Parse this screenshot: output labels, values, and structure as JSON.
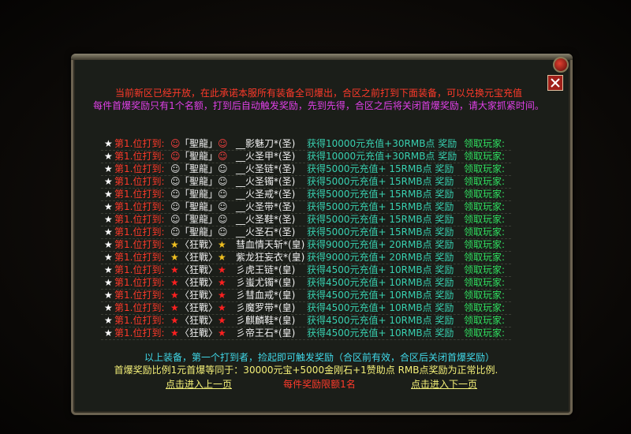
{
  "header": {
    "line1": "当前新区已经开放，在此承诺本服所有装备全司爆出，合区之前打到下面装备，可以兑换元宝充值",
    "line2": "每件首爆奖励只有1个名额，打到后自动触发奖励，先到先得，合区之后将关闭首爆奖励，请大家抓紧时间。"
  },
  "rows": [
    {
      "marker": "★",
      "rank": "第1.位打到:",
      "icon": "☺",
      "icon_color": "#ff4040",
      "label": "「聖龍」",
      "item": "__影魅刀*(圣)",
      "reward": "获得10000元充值+30RMB点 奖励",
      "claimant": "领取玩家:"
    },
    {
      "marker": "★",
      "rank": "第1.位打到:",
      "icon": "☺",
      "icon_color": "#ff4040",
      "label": "「聖龍」",
      "item": "__火圣甲*(圣)",
      "reward": "获得10000元充值+30RMB点 奖励",
      "claimant": "领取玩家:"
    },
    {
      "marker": "★",
      "rank": "第1.位打到:",
      "icon": "☺",
      "icon_color": "#e0e0e0",
      "label": "「聖龍」",
      "item": "__火圣链*(圣)",
      "reward": "获得5000元充值+ 15RMB点 奖励",
      "claimant": "领取玩家:"
    },
    {
      "marker": "★",
      "rank": "第1.位打到:",
      "icon": "☺",
      "icon_color": "#e0e0e0",
      "label": "「聖龍」",
      "item": "__火圣镯*(圣)",
      "reward": "获得5000元充值+ 15RMB点 奖励",
      "claimant": "领取玩家:"
    },
    {
      "marker": "★",
      "rank": "第1.位打到:",
      "icon": "☺",
      "icon_color": "#e0e0e0",
      "label": "「聖龍」",
      "item": "__火圣戒*(圣)",
      "reward": "获得5000元充值+ 15RMB点 奖励",
      "claimant": "领取玩家:"
    },
    {
      "marker": "★",
      "rank": "第1.位打到:",
      "icon": "☺",
      "icon_color": "#e0e0e0",
      "label": "「聖龍」",
      "item": "__火圣带*(圣)",
      "reward": "获得5000元充值+ 15RMB点 奖励",
      "claimant": "领取玩家:"
    },
    {
      "marker": "★",
      "rank": "第1.位打到:",
      "icon": "☺",
      "icon_color": "#e0e0e0",
      "label": "「聖龍」",
      "item": "__火圣鞋*(圣)",
      "reward": "获得5000元充值+ 15RMB点 奖励",
      "claimant": "领取玩家:"
    },
    {
      "marker": "★",
      "rank": "第1.位打到:",
      "icon": "☺",
      "icon_color": "#e0e0e0",
      "label": "「聖龍」",
      "item": "__火圣石*(圣)",
      "reward": "获得5000元充值+ 15RMB点 奖励",
      "claimant": "领取玩家:"
    },
    {
      "marker": "★",
      "rank": "第1.位打到:",
      "icon": "★",
      "icon_color": "#f0c020",
      "label": "〈狂戰〉",
      "item": "彗血情天斩*(皇)",
      "reward": "获得9000元充值+ 20RMB点 奖励",
      "claimant": "领取玩家:"
    },
    {
      "marker": "★",
      "rank": "第1.位打到:",
      "icon": "★",
      "icon_color": "#f0c020",
      "label": "〈狂戰〉",
      "item": "紫龙狂妄衣*(皇)",
      "reward": "获得9000元充值+ 20RMB点 奖励",
      "claimant": "领取玩家:"
    },
    {
      "marker": "★",
      "rank": "第1.位打到:",
      "icon": "★",
      "icon_color": "#ff2020",
      "label": "〈狂戰〉",
      "item": "彡虎王链*(皇)",
      "reward": "获得4500元充值+ 10RMB点 奖励",
      "claimant": "领取玩家:"
    },
    {
      "marker": "★",
      "rank": "第1.位打到:",
      "icon": "★",
      "icon_color": "#ff2020",
      "label": "〈狂戰〉",
      "item": "彡蚩尤镯*(皇)",
      "reward": "获得4500元充值+ 10RMB点 奖励",
      "claimant": "领取玩家:"
    },
    {
      "marker": "★",
      "rank": "第1.位打到:",
      "icon": "★",
      "icon_color": "#ff2020",
      "label": "〈狂戰〉",
      "item": "彡彗血戒*(皇)",
      "reward": "获得4500元充值+ 10RMB点 奖励",
      "claimant": "领取玩家:"
    },
    {
      "marker": "★",
      "rank": "第1.位打到:",
      "icon": "★",
      "icon_color": "#ff2020",
      "label": "〈狂戰〉",
      "item": "彡魔罗带*(皇)",
      "reward": "获得4500元充值+ 10RMB点 奖励",
      "claimant": "领取玩家:"
    },
    {
      "marker": "★",
      "rank": "第1.位打到:",
      "icon": "★",
      "icon_color": "#ff2020",
      "label": "〈狂戰〉",
      "item": "彡麒麟鞋*(皇)",
      "reward": "获得4500元充值+ 10RMB点 奖励",
      "claimant": "领取玩家:"
    },
    {
      "marker": "★",
      "rank": "第1.位打到:",
      "icon": "★",
      "icon_color": "#ff2020",
      "label": "〈狂戰〉",
      "item": "彡帝王石*(皇)",
      "reward": "获得4500元充值+ 10RMB点 奖励",
      "claimant": "领取玩家:"
    }
  ],
  "footer": {
    "note": "以上装备，第一个打到者，捡起即可触发奖励（合区前有效，合区后关闭首爆奖励）",
    "ratio": "首爆奖励比例1元首爆等同于：30000元宝+5000金刚石+1赞助点 RMB点奖励为正常比例.",
    "prev": "点击进入上一页",
    "limit": "每件奖励限额1名",
    "next": "点击进入下一页"
  }
}
